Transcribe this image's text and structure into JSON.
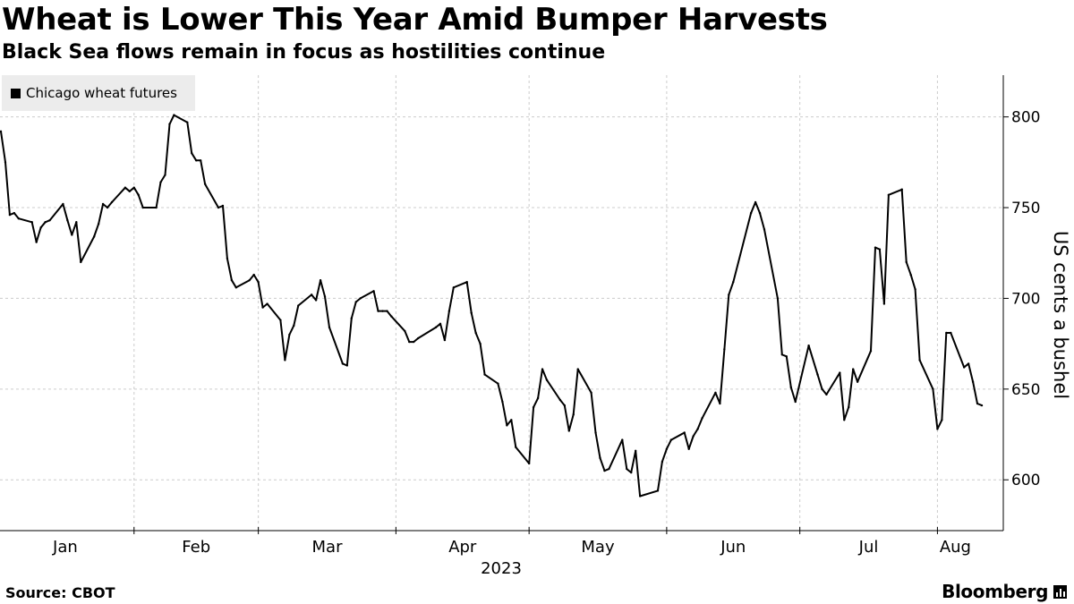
{
  "header": {
    "title": "Wheat is Lower This Year Amid Bumper Harvests",
    "subtitle": "Black Sea flows remain in focus as hostilities continue"
  },
  "footer": {
    "source": "Source: CBOT",
    "logo": "Bloomberg"
  },
  "colors": {
    "line": "#000000",
    "grid": "#cccccc",
    "legend_bg": "#ececec"
  },
  "chart_data": {
    "type": "line",
    "title": "Wheat is Lower This Year Amid Bumper Harvests",
    "subtitle": "Black Sea flows remain in focus as hostilities continue",
    "ylabel": "US cents a bushel",
    "xlabel": "2023",
    "year_label": "2023",
    "x_tick_labels": [
      "Jan",
      "Feb",
      "Mar",
      "Apr",
      "May",
      "Jun",
      "Jul",
      "Aug"
    ],
    "y_ticks": [
      600,
      650,
      700,
      750,
      800
    ],
    "ylim": [
      572,
      823
    ],
    "grid": true,
    "legend_position": "top-left",
    "series": [
      {
        "name": "Chicago wheat futures",
        "color": "#000000",
        "points": [
          [
            "2023-01-02",
            792
          ],
          [
            "2023-01-03",
            775
          ],
          [
            "2023-01-04",
            746
          ],
          [
            "2023-01-05",
            747
          ],
          [
            "2023-01-06",
            744
          ],
          [
            "2023-01-09",
            742
          ],
          [
            "2023-01-10",
            731
          ],
          [
            "2023-01-11",
            739
          ],
          [
            "2023-01-12",
            742
          ],
          [
            "2023-01-13",
            743
          ],
          [
            "2023-01-16",
            752
          ],
          [
            "2023-01-17",
            743
          ],
          [
            "2023-01-18",
            735
          ],
          [
            "2023-01-19",
            742
          ],
          [
            "2023-01-20",
            720
          ],
          [
            "2023-01-23",
            734
          ],
          [
            "2023-01-24",
            741
          ],
          [
            "2023-01-25",
            752
          ],
          [
            "2023-01-26",
            750
          ],
          [
            "2023-01-27",
            753
          ],
          [
            "2023-01-30",
            761
          ],
          [
            "2023-01-31",
            759
          ],
          [
            "2023-02-01",
            761
          ],
          [
            "2023-02-02",
            757
          ],
          [
            "2023-02-03",
            750
          ],
          [
            "2023-02-06",
            750
          ],
          [
            "2023-02-07",
            764
          ],
          [
            "2023-02-08",
            768
          ],
          [
            "2023-02-09",
            796
          ],
          [
            "2023-02-10",
            801
          ],
          [
            "2023-02-13",
            797
          ],
          [
            "2023-02-14",
            780
          ],
          [
            "2023-02-15",
            776
          ],
          [
            "2023-02-16",
            776
          ],
          [
            "2023-02-17",
            763
          ],
          [
            "2023-02-20",
            750
          ],
          [
            "2023-02-21",
            751
          ],
          [
            "2023-02-22",
            722
          ],
          [
            "2023-02-23",
            710
          ],
          [
            "2023-02-24",
            706
          ],
          [
            "2023-02-27",
            710
          ],
          [
            "2023-02-28",
            713
          ],
          [
            "2023-03-01",
            709
          ],
          [
            "2023-03-02",
            695
          ],
          [
            "2023-03-03",
            697
          ],
          [
            "2023-03-06",
            688
          ],
          [
            "2023-03-07",
            666
          ],
          [
            "2023-03-08",
            680
          ],
          [
            "2023-03-09",
            685
          ],
          [
            "2023-03-10",
            696
          ],
          [
            "2023-03-13",
            702
          ],
          [
            "2023-03-14",
            699
          ],
          [
            "2023-03-15",
            710
          ],
          [
            "2023-03-16",
            701
          ],
          [
            "2023-03-17",
            684
          ],
          [
            "2023-03-20",
            664
          ],
          [
            "2023-03-21",
            663
          ],
          [
            "2023-03-22",
            689
          ],
          [
            "2023-03-23",
            698
          ],
          [
            "2023-03-24",
            700
          ],
          [
            "2023-03-27",
            704
          ],
          [
            "2023-03-28",
            693
          ],
          [
            "2023-03-29",
            693
          ],
          [
            "2023-03-30",
            693
          ],
          [
            "2023-03-31",
            690
          ],
          [
            "2023-04-03",
            682
          ],
          [
            "2023-04-04",
            676
          ],
          [
            "2023-04-05",
            676
          ],
          [
            "2023-04-06",
            678
          ],
          [
            "2023-04-10",
            684
          ],
          [
            "2023-04-11",
            686
          ],
          [
            "2023-04-12",
            677
          ],
          [
            "2023-04-13",
            693
          ],
          [
            "2023-04-14",
            706
          ],
          [
            "2023-04-17",
            709
          ],
          [
            "2023-04-18",
            692
          ],
          [
            "2023-04-19",
            681
          ],
          [
            "2023-04-20",
            675
          ],
          [
            "2023-04-21",
            658
          ],
          [
            "2023-04-24",
            653
          ],
          [
            "2023-04-25",
            643
          ],
          [
            "2023-04-26",
            630
          ],
          [
            "2023-04-27",
            633
          ],
          [
            "2023-04-28",
            618
          ],
          [
            "2023-05-01",
            609
          ],
          [
            "2023-05-02",
            640
          ],
          [
            "2023-05-03",
            645
          ],
          [
            "2023-05-04",
            661
          ],
          [
            "2023-05-05",
            655
          ],
          [
            "2023-05-08",
            644
          ],
          [
            "2023-05-09",
            641
          ],
          [
            "2023-05-10",
            627
          ],
          [
            "2023-05-11",
            636
          ],
          [
            "2023-05-12",
            661
          ],
          [
            "2023-05-15",
            648
          ],
          [
            "2023-05-16",
            626
          ],
          [
            "2023-05-17",
            612
          ],
          [
            "2023-05-18",
            605
          ],
          [
            "2023-05-19",
            606
          ],
          [
            "2023-05-22",
            622
          ],
          [
            "2023-05-23",
            606
          ],
          [
            "2023-05-24",
            604
          ],
          [
            "2023-05-25",
            616
          ],
          [
            "2023-05-26",
            591
          ],
          [
            "2023-05-30",
            594
          ],
          [
            "2023-05-31",
            610
          ],
          [
            "2023-06-01",
            617
          ],
          [
            "2023-06-02",
            622
          ],
          [
            "2023-06-05",
            626
          ],
          [
            "2023-06-06",
            617
          ],
          [
            "2023-06-07",
            624
          ],
          [
            "2023-06-08",
            628
          ],
          [
            "2023-06-09",
            634
          ],
          [
            "2023-06-12",
            648
          ],
          [
            "2023-06-13",
            642
          ],
          [
            "2023-06-14",
            672
          ],
          [
            "2023-06-15",
            702
          ],
          [
            "2023-06-16",
            709
          ],
          [
            "2023-06-20",
            747
          ],
          [
            "2023-06-21",
            753
          ],
          [
            "2023-06-22",
            747
          ],
          [
            "2023-06-23",
            738
          ],
          [
            "2023-06-26",
            700
          ],
          [
            "2023-06-27",
            669
          ],
          [
            "2023-06-28",
            668
          ],
          [
            "2023-06-29",
            651
          ],
          [
            "2023-06-30",
            643
          ],
          [
            "2023-07-03",
            674
          ],
          [
            "2023-07-05",
            658
          ],
          [
            "2023-07-06",
            650
          ],
          [
            "2023-07-07",
            647
          ],
          [
            "2023-07-10",
            659
          ],
          [
            "2023-07-11",
            633
          ],
          [
            "2023-07-12",
            640
          ],
          [
            "2023-07-13",
            661
          ],
          [
            "2023-07-14",
            654
          ],
          [
            "2023-07-17",
            671
          ],
          [
            "2023-07-18",
            728
          ],
          [
            "2023-07-19",
            727
          ],
          [
            "2023-07-20",
            697
          ],
          [
            "2023-07-21",
            757
          ],
          [
            "2023-07-24",
            760
          ],
          [
            "2023-07-25",
            720
          ],
          [
            "2023-07-26",
            713
          ],
          [
            "2023-07-27",
            705
          ],
          [
            "2023-07-28",
            666
          ],
          [
            "2023-07-31",
            650
          ],
          [
            "2023-08-01",
            628
          ],
          [
            "2023-08-02",
            633
          ],
          [
            "2023-08-03",
            681
          ],
          [
            "2023-08-04",
            681
          ],
          [
            "2023-08-07",
            662
          ],
          [
            "2023-08-08",
            664
          ],
          [
            "2023-08-09",
            654
          ],
          [
            "2023-08-10",
            642
          ],
          [
            "2023-08-11",
            641
          ]
        ]
      }
    ]
  }
}
